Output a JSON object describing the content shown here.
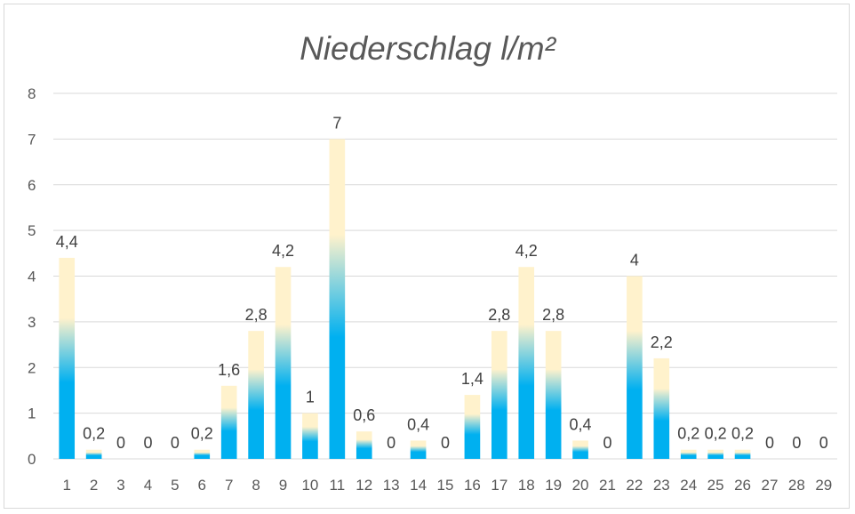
{
  "chart_data": {
    "type": "bar",
    "title": "Niederschlag  l/m²",
    "xlabel": "",
    "ylabel": "",
    "ylim": [
      0,
      8
    ],
    "yticks": [
      "0",
      "1",
      "2",
      "3",
      "4",
      "5",
      "6",
      "7",
      "8"
    ],
    "categories": [
      "1",
      "2",
      "3",
      "4",
      "5",
      "6",
      "7",
      "8",
      "9",
      "10",
      "11",
      "12",
      "13",
      "14",
      "15",
      "16",
      "17",
      "18",
      "19",
      "20",
      "21",
      "22",
      "23",
      "24",
      "25",
      "26",
      "27",
      "28",
      "29"
    ],
    "values": [
      4.4,
      0.2,
      0,
      0,
      0,
      0.2,
      1.6,
      2.8,
      4.2,
      1,
      7,
      0.6,
      0,
      0.4,
      0,
      1.4,
      2.8,
      4.2,
      2.8,
      0.4,
      0,
      4,
      2.2,
      0.2,
      0.2,
      0.2,
      0,
      0,
      0
    ],
    "data_labels": [
      "4,4",
      "0,2",
      "0",
      "0",
      "0",
      "0,2",
      "1,6",
      "2,8",
      "4,2",
      "1",
      "7",
      "0,6",
      "0",
      "0,4",
      "0",
      "1,4",
      "2,8",
      "4,2",
      "2,8",
      "0,4",
      "0",
      "4",
      "2,2",
      "0,2",
      "0,2",
      "0,2",
      "0",
      "0",
      "0"
    ],
    "grid": true,
    "legend": "none",
    "colors": {
      "bar_bottom": "#00b0f0",
      "bar_mid": "#8fd3e8",
      "bar_top": "#fff2cc",
      "grid": "#d9d9d9",
      "text": "#595959"
    }
  }
}
